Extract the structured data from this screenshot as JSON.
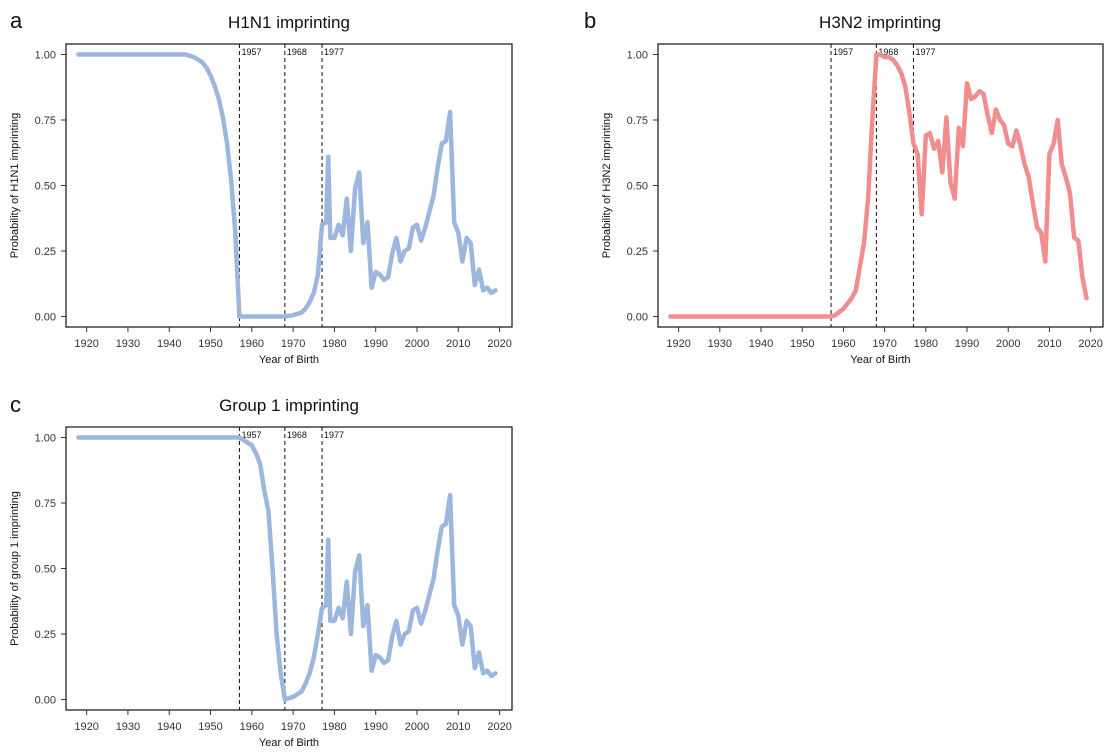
{
  "chart_data": [
    {
      "type": "line",
      "panel": "a",
      "title": "H1N1 imprinting",
      "xlabel": "Year of Birth",
      "ylabel": "Probability of H1N1 imprinting",
      "xlim": [
        1915,
        2023
      ],
      "ylim": [
        -0.04,
        1.04
      ],
      "xticks": [
        1920,
        1930,
        1940,
        1950,
        1960,
        1970,
        1980,
        1990,
        2000,
        2010,
        2020
      ],
      "yticks": [
        "0.00",
        "0.25",
        "0.50",
        "0.75",
        "1.00"
      ],
      "ytick_values": [
        0,
        0.25,
        0.5,
        0.75,
        1
      ],
      "reference_lines": [
        {
          "x": 1957,
          "label": "1957"
        },
        {
          "x": 1968,
          "label": "1968"
        },
        {
          "x": 1977,
          "label": "1977"
        }
      ],
      "grid": false,
      "color": "#9db6dd",
      "series": [
        {
          "x": [
            1918,
            1944,
            1946,
            1948,
            1949,
            1950,
            1951,
            1952,
            1953,
            1954,
            1955,
            1956,
            1957,
            1958,
            1960,
            1962,
            1964,
            1966,
            1968,
            1970,
            1972,
            1973,
            1974,
            1975,
            1976,
            1977,
            1978,
            1978.5,
            1979,
            1980,
            1981,
            1982,
            1983,
            1984,
            1985,
            1986,
            1987,
            1988,
            1989,
            1990,
            1991,
            1992,
            1993,
            1994,
            1995,
            1996,
            1997,
            1998,
            1999,
            2000,
            2001,
            2002,
            2003,
            2004,
            2005,
            2006,
            2007,
            2008,
            2009,
            2010,
            2011,
            2012,
            2013,
            2014,
            2015,
            2016,
            2017,
            2018,
            2019
          ],
          "y": [
            1.0,
            1.0,
            0.99,
            0.97,
            0.95,
            0.92,
            0.88,
            0.83,
            0.76,
            0.66,
            0.52,
            0.32,
            0.0,
            0.0,
            0.0,
            0.0,
            0.0,
            0.0,
            0.0,
            0.005,
            0.015,
            0.03,
            0.055,
            0.09,
            0.16,
            0.35,
            0.36,
            0.61,
            0.3,
            0.3,
            0.35,
            0.31,
            0.45,
            0.25,
            0.49,
            0.55,
            0.28,
            0.36,
            0.11,
            0.17,
            0.16,
            0.14,
            0.15,
            0.24,
            0.3,
            0.21,
            0.25,
            0.26,
            0.34,
            0.35,
            0.29,
            0.34,
            0.4,
            0.46,
            0.57,
            0.66,
            0.67,
            0.78,
            0.36,
            0.32,
            0.21,
            0.3,
            0.28,
            0.12,
            0.18,
            0.1,
            0.11,
            0.09,
            0.1
          ]
        }
      ]
    },
    {
      "type": "line",
      "panel": "b",
      "title": "H3N2 imprinting",
      "xlabel": "Year of Birth",
      "ylabel": "Probability of H3N2 imprinting",
      "xlim": [
        1915,
        2023
      ],
      "ylim": [
        -0.04,
        1.04
      ],
      "xticks": [
        1920,
        1930,
        1940,
        1950,
        1960,
        1970,
        1980,
        1990,
        2000,
        2010,
        2020
      ],
      "yticks": [
        "0.00",
        "0.25",
        "0.50",
        "0.75",
        "1.00"
      ],
      "ytick_values": [
        0,
        0.25,
        0.5,
        0.75,
        1
      ],
      "reference_lines": [
        {
          "x": 1957,
          "label": "1957"
        },
        {
          "x": 1968,
          "label": "1968"
        },
        {
          "x": 1977,
          "label": "1977"
        }
      ],
      "grid": false,
      "color": "#f08d8f",
      "series": [
        {
          "x": [
            1918,
            1940,
            1957,
            1958,
            1960,
            1962,
            1963,
            1964,
            1965,
            1966,
            1967,
            1968,
            1969,
            1970,
            1971,
            1972,
            1973,
            1974,
            1975,
            1976,
            1977,
            1978,
            1979,
            1980,
            1981,
            1982,
            1983,
            1984,
            1985,
            1986,
            1987,
            1988,
            1989,
            1990,
            1991,
            1992,
            1993,
            1994,
            1995,
            1996,
            1997,
            1998,
            1999,
            2000,
            2001,
            2002,
            2003,
            2004,
            2005,
            2006,
            2007,
            2008,
            2009,
            2010,
            2011,
            2012,
            2013,
            2014,
            2015,
            2016,
            2017,
            2018,
            2019
          ],
          "y": [
            0.0,
            0.0,
            0.0,
            0.005,
            0.03,
            0.07,
            0.1,
            0.19,
            0.28,
            0.45,
            0.75,
            1.0,
            1.0,
            0.99,
            0.99,
            0.98,
            0.96,
            0.93,
            0.88,
            0.78,
            0.66,
            0.62,
            0.39,
            0.69,
            0.7,
            0.64,
            0.67,
            0.55,
            0.76,
            0.51,
            0.45,
            0.72,
            0.65,
            0.89,
            0.83,
            0.84,
            0.86,
            0.85,
            0.77,
            0.7,
            0.79,
            0.75,
            0.73,
            0.66,
            0.65,
            0.71,
            0.65,
            0.58,
            0.53,
            0.43,
            0.34,
            0.32,
            0.21,
            0.62,
            0.66,
            0.75,
            0.58,
            0.53,
            0.47,
            0.3,
            0.29,
            0.15,
            0.07
          ]
        }
      ]
    },
    {
      "type": "line",
      "panel": "c",
      "title": "Group 1 imprinting",
      "xlabel": "Year of Birth",
      "ylabel": "Probability of group 1 imprinting",
      "xlim": [
        1915,
        2023
      ],
      "ylim": [
        -0.04,
        1.04
      ],
      "xticks": [
        1920,
        1930,
        1940,
        1950,
        1960,
        1970,
        1980,
        1990,
        2000,
        2010,
        2020
      ],
      "yticks": [
        "0.00",
        "0.25",
        "0.50",
        "0.75",
        "1.00"
      ],
      "ytick_values": [
        0,
        0.25,
        0.5,
        0.75,
        1
      ],
      "reference_lines": [
        {
          "x": 1957,
          "label": "1957"
        },
        {
          "x": 1968,
          "label": "1968"
        },
        {
          "x": 1977,
          "label": "1977"
        }
      ],
      "grid": false,
      "color": "#9db6dd",
      "series": [
        {
          "x": [
            1918,
            1957,
            1958,
            1960,
            1961,
            1962,
            1963,
            1964,
            1965,
            1966,
            1967,
            1968,
            1969,
            1970,
            1972,
            1973,
            1974,
            1975,
            1976,
            1977,
            1978,
            1978.5,
            1979,
            1980,
            1981,
            1982,
            1983,
            1984,
            1985,
            1986,
            1987,
            1988,
            1989,
            1990,
            1991,
            1992,
            1993,
            1994,
            1995,
            1996,
            1997,
            1998,
            1999,
            2000,
            2001,
            2002,
            2003,
            2004,
            2005,
            2006,
            2007,
            2008,
            2009,
            2010,
            2011,
            2012,
            2013,
            2014,
            2015,
            2016,
            2017,
            2018,
            2019
          ],
          "y": [
            1.0,
            1.0,
            0.99,
            0.97,
            0.94,
            0.9,
            0.8,
            0.72,
            0.5,
            0.25,
            0.1,
            0.0,
            0.005,
            0.01,
            0.03,
            0.06,
            0.1,
            0.16,
            0.25,
            0.35,
            0.36,
            0.61,
            0.3,
            0.3,
            0.35,
            0.31,
            0.45,
            0.25,
            0.49,
            0.55,
            0.28,
            0.36,
            0.11,
            0.17,
            0.16,
            0.14,
            0.15,
            0.24,
            0.3,
            0.21,
            0.25,
            0.26,
            0.34,
            0.35,
            0.29,
            0.34,
            0.4,
            0.46,
            0.57,
            0.66,
            0.67,
            0.78,
            0.36,
            0.32,
            0.21,
            0.3,
            0.28,
            0.12,
            0.18,
            0.1,
            0.11,
            0.09,
            0.1
          ]
        }
      ]
    }
  ]
}
